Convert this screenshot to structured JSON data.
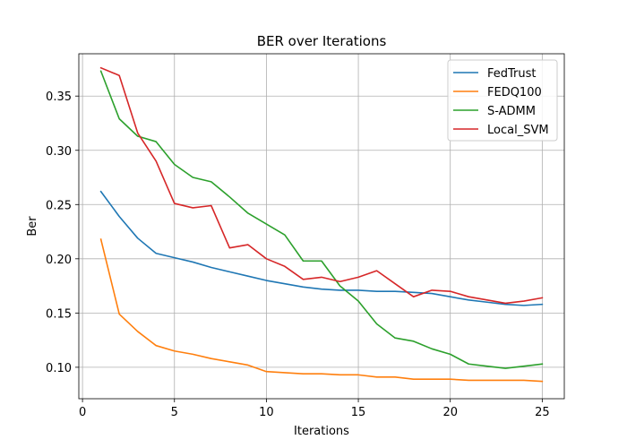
{
  "chart_data": {
    "type": "line",
    "title": "BER over Iterations",
    "xlabel": "Iterations",
    "ylabel": "Ber",
    "xlim": [
      -0.2,
      26.2
    ],
    "ylim": [
      0.071,
      0.389
    ],
    "xticks": [
      0,
      5,
      10,
      15,
      20,
      25
    ],
    "yticks": [
      0.1,
      0.15,
      0.2,
      0.25,
      0.3,
      0.35
    ],
    "xtick_labels": [
      "0",
      "5",
      "10",
      "15",
      "20",
      "25"
    ],
    "ytick_labels": [
      "0.10",
      "0.15",
      "0.20",
      "0.25",
      "0.30",
      "0.35"
    ],
    "grid": true,
    "legend_position": "top-right",
    "x": [
      1,
      2,
      3,
      4,
      5,
      6,
      7,
      8,
      9,
      10,
      11,
      12,
      13,
      14,
      15,
      16,
      17,
      18,
      19,
      20,
      21,
      22,
      23,
      24,
      25
    ],
    "series": [
      {
        "name": "FedTrust",
        "color": "#1f77b4",
        "values": [
          0.262,
          0.239,
          0.219,
          0.205,
          0.201,
          0.197,
          0.192,
          0.188,
          0.184,
          0.18,
          0.177,
          0.174,
          0.172,
          0.171,
          0.171,
          0.17,
          0.17,
          0.169,
          0.168,
          0.165,
          0.162,
          0.16,
          0.158,
          0.157,
          0.158
        ]
      },
      {
        "name": "FEDQ100",
        "color": "#ff7f0e",
        "values": [
          0.218,
          0.149,
          0.133,
          0.12,
          0.115,
          0.112,
          0.108,
          0.105,
          0.102,
          0.096,
          0.095,
          0.094,
          0.094,
          0.093,
          0.093,
          0.091,
          0.091,
          0.089,
          0.089,
          0.089,
          0.088,
          0.088,
          0.088,
          0.088,
          0.087
        ]
      },
      {
        "name": "S-ADMM",
        "color": "#2ca02c",
        "values": [
          0.373,
          0.329,
          0.313,
          0.308,
          0.287,
          0.275,
          0.271,
          0.257,
          0.242,
          0.232,
          0.222,
          0.198,
          0.198,
          0.175,
          0.161,
          0.14,
          0.127,
          0.124,
          0.117,
          0.112,
          0.103,
          0.101,
          0.099,
          0.101,
          0.103
        ]
      },
      {
        "name": "Local_SVM",
        "color": "#d62728",
        "values": [
          0.376,
          0.369,
          0.316,
          0.29,
          0.251,
          0.247,
          0.249,
          0.21,
          0.213,
          0.2,
          0.193,
          0.181,
          0.183,
          0.179,
          0.183,
          0.189,
          0.177,
          0.165,
          0.171,
          0.17,
          0.165,
          0.162,
          0.159,
          0.161,
          0.164
        ]
      }
    ]
  }
}
